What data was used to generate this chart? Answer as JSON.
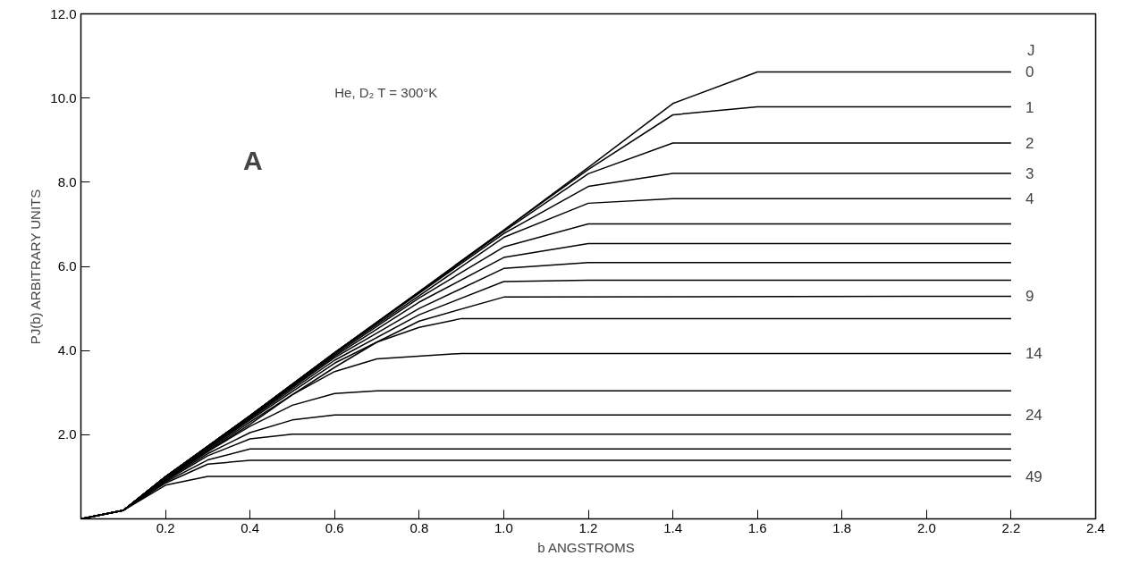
{
  "chart_data": {
    "type": "line",
    "xlabel": "b  ANGSTROMS",
    "ylabel": "PJ(b) ARBITRARY UNITS",
    "xlim": [
      0,
      2.4
    ],
    "ylim": [
      0,
      12
    ],
    "xticks": [
      {
        "value": 0.2,
        "label": "0.2"
      },
      {
        "value": 0.4,
        "label": "0.4"
      },
      {
        "value": 0.6,
        "label": "0.6"
      },
      {
        "value": 0.8,
        "label": "0.8"
      },
      {
        "value": 1.0,
        "label": "1.0"
      },
      {
        "value": 1.2,
        "label": "1.2"
      },
      {
        "value": 1.4,
        "label": "1.4"
      },
      {
        "value": 1.6,
        "label": "1.6"
      },
      {
        "value": 1.8,
        "label": "1.8"
      },
      {
        "value": 2.0,
        "label": "2.0"
      },
      {
        "value": 2.2,
        "label": "2.2"
      },
      {
        "value": 2.4,
        "label": "2.4"
      }
    ],
    "yticks": [
      {
        "value": 2,
        "label": "2.0"
      },
      {
        "value": 4,
        "label": "4.0"
      },
      {
        "value": 6,
        "label": "6.0"
      },
      {
        "value": 8,
        "label": "8.0"
      },
      {
        "value": 10,
        "label": "10.0"
      },
      {
        "value": 12,
        "label": "12.0"
      }
    ],
    "grid": false,
    "marker": "none",
    "line_style": "solid",
    "legend_title": "J",
    "series": [
      {
        "name": "0",
        "color": "#000000",
        "x": [
          0,
          0.1,
          0.2,
          0.4,
          0.6,
          0.8,
          1.0,
          1.2,
          1.4,
          1.6,
          2.2
        ],
        "values": [
          0,
          0.2,
          1.0,
          2.45,
          3.95,
          5.4,
          6.86,
          8.35,
          9.87,
          10.62,
          10.62
        ]
      },
      {
        "name": "1",
        "color": "#000000",
        "x": [
          0,
          0.1,
          0.2,
          0.4,
          0.6,
          0.8,
          1.0,
          1.2,
          1.4,
          1.6,
          2.2
        ],
        "values": [
          0,
          0.2,
          1.0,
          2.45,
          3.95,
          5.4,
          6.86,
          8.3,
          9.6,
          9.79,
          9.79
        ]
      },
      {
        "name": "2",
        "color": "#000000",
        "x": [
          0,
          0.1,
          0.2,
          0.4,
          0.6,
          0.8,
          1.0,
          1.2,
          1.4,
          2.2
        ],
        "values": [
          0,
          0.2,
          1.0,
          2.45,
          3.95,
          5.38,
          6.83,
          8.2,
          8.93,
          8.93
        ]
      },
      {
        "name": "3",
        "color": "#000000",
        "x": [
          0,
          0.1,
          0.2,
          0.4,
          0.6,
          0.8,
          1.0,
          1.2,
          1.4,
          2.2
        ],
        "values": [
          0,
          0.2,
          1.0,
          2.45,
          3.95,
          5.36,
          6.78,
          7.9,
          8.21,
          8.21
        ]
      },
      {
        "name": "4",
        "color": "#000000",
        "x": [
          0,
          0.1,
          0.2,
          0.4,
          0.6,
          0.8,
          1.0,
          1.2,
          1.4,
          2.2
        ],
        "values": [
          0,
          0.2,
          1.0,
          2.45,
          3.93,
          5.3,
          6.69,
          7.5,
          7.61,
          7.61
        ]
      },
      {
        "color": "#000000",
        "x": [
          0,
          0.1,
          0.2,
          0.4,
          0.6,
          0.8,
          1.0,
          1.2,
          2.2
        ],
        "values": [
          0,
          0.2,
          1.0,
          2.43,
          3.9,
          5.25,
          6.46,
          7.01,
          7.01
        ]
      },
      {
        "color": "#000000",
        "x": [
          0,
          0.1,
          0.2,
          0.4,
          0.6,
          0.8,
          1.0,
          1.2,
          2.2
        ],
        "values": [
          0,
          0.2,
          1.0,
          2.42,
          3.87,
          5.15,
          6.21,
          6.54,
          6.54
        ]
      },
      {
        "color": "#000000",
        "x": [
          0,
          0.1,
          0.2,
          0.4,
          0.6,
          0.8,
          1.0,
          1.2,
          2.2
        ],
        "values": [
          0,
          0.2,
          1.0,
          2.4,
          3.83,
          5.0,
          5.95,
          6.09,
          6.09
        ]
      },
      {
        "color": "#000000",
        "x": [
          0,
          0.1,
          0.2,
          0.4,
          0.6,
          0.8,
          1.0,
          1.2,
          2.2
        ],
        "values": [
          0,
          0.2,
          0.98,
          2.38,
          3.77,
          4.85,
          5.64,
          5.67,
          5.67
        ]
      },
      {
        "name": "9",
        "color": "#000000",
        "x": [
          0,
          0.1,
          0.2,
          0.4,
          0.6,
          0.8,
          1.0,
          2.2
        ],
        "values": [
          0,
          0.2,
          0.97,
          2.35,
          3.7,
          4.7,
          5.27,
          5.29
        ]
      },
      {
        "color": "#000000",
        "x": [
          0,
          0.1,
          0.2,
          0.4,
          0.6,
          0.7,
          0.8,
          0.9,
          2.2
        ],
        "values": [
          0,
          0.2,
          0.96,
          2.3,
          3.6,
          4.2,
          4.55,
          4.76,
          4.76
        ]
      },
      {
        "name": "14",
        "color": "#000000",
        "x": [
          0,
          0.1,
          0.2,
          0.4,
          0.5,
          0.6,
          0.7,
          0.9,
          2.2
        ],
        "values": [
          0,
          0.2,
          0.95,
          2.25,
          2.95,
          3.5,
          3.8,
          3.93,
          3.93
        ]
      },
      {
        "color": "#000000",
        "x": [
          0,
          0.1,
          0.2,
          0.3,
          0.4,
          0.5,
          0.6,
          0.7,
          2.2
        ],
        "values": [
          0,
          0.2,
          0.93,
          1.6,
          2.2,
          2.7,
          2.98,
          3.04,
          3.04
        ]
      },
      {
        "name": "24",
        "color": "#000000",
        "x": [
          0,
          0.1,
          0.2,
          0.3,
          0.4,
          0.5,
          0.6,
          2.2
        ],
        "values": [
          0,
          0.2,
          0.92,
          1.55,
          2.05,
          2.35,
          2.47,
          2.47
        ]
      },
      {
        "color": "#000000",
        "x": [
          0,
          0.1,
          0.2,
          0.3,
          0.4,
          0.5,
          2.2
        ],
        "values": [
          0,
          0.2,
          0.9,
          1.5,
          1.9,
          2.01,
          2.01
        ]
      },
      {
        "color": "#000000",
        "x": [
          0,
          0.1,
          0.2,
          0.3,
          0.4,
          2.2
        ],
        "values": [
          0,
          0.2,
          0.88,
          1.4,
          1.66,
          1.66
        ]
      },
      {
        "color": "#000000",
        "x": [
          0,
          0.1,
          0.2,
          0.3,
          0.4,
          2.2
        ],
        "values": [
          0,
          0.2,
          0.85,
          1.3,
          1.39,
          1.39
        ]
      },
      {
        "name": "49",
        "color": "#000000",
        "x": [
          0,
          0.1,
          0.2,
          0.3,
          2.2
        ],
        "values": [
          0,
          0.2,
          0.8,
          1.01,
          1.01
        ]
      }
    ],
    "annotations": [
      "He, D₂   T = 300°K",
      "A"
    ]
  }
}
